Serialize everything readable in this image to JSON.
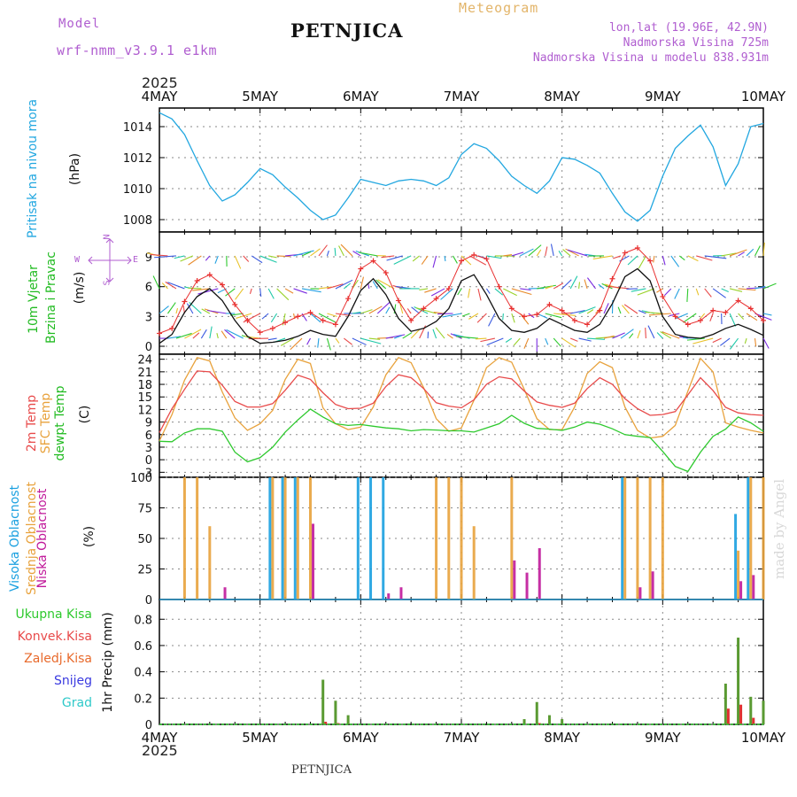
{
  "header": {
    "model_label": "Model",
    "model_name": "wrf-nmm_v3.9.1  e1km",
    "station": "PETNJICA",
    "product": "Meteogram",
    "location": "lon,lat (19.96E, 42.9N)",
    "elevation": "Nadmorska Visina 725m",
    "model_elevation": "Nadmorska Visina u modelu 838.931m",
    "year": "2025",
    "footer_station": "PETNJICA",
    "watermark": "made by Angel"
  },
  "colors": {
    "pressure": "#22a7e0",
    "temp2m": "#e84a4a",
    "sfc": "#e8a23c",
    "dewpt": "#2ec92e",
    "high_cloud": "#1aa0e0",
    "mid_cloud": "#e8a23c",
    "low_cloud": "#c0189a",
    "total_precip": "#5a9a32",
    "conv_precip": "#e03030",
    "wind_speed": "#111111",
    "gust": "#e83030"
  },
  "x_axis": {
    "ticks": [
      "4MAY",
      "5MAY",
      "6MAY",
      "7MAY",
      "8MAY",
      "9MAY",
      "10MAY"
    ],
    "range_hours": [
      0,
      144
    ]
  },
  "panels": {
    "pressure": {
      "ylabel_left": "Pritisak na nivou mora",
      "unit": "(hPa)",
      "yticks": [
        "1008",
        "1010",
        "1012",
        "1014"
      ]
    },
    "wind": {
      "ylabel_left_1": "10m Vjetar",
      "ylabel_left_2": "Brzina i Pravac",
      "unit": "(m/s)",
      "yticks": [
        "0",
        "3",
        "6",
        "9"
      ],
      "compass_n": "N",
      "compass_s": "S",
      "compass_e": "E",
      "compass_w": "W",
      "compass_row1": "N",
      "compass_row2": "^",
      "compass_row3": "W <-|-> E",
      "compass_row4": "v",
      "compass_row5": "S"
    },
    "temp": {
      "ylabel_1": "2m Temp",
      "ylabel_2": "SFC Temp",
      "ylabel_3": "dewpt Temp",
      "unit": "(C)",
      "yticks": [
        "-3",
        "0",
        "3",
        "6",
        "9",
        "12",
        "15",
        "18",
        "21",
        "24"
      ]
    },
    "cloud": {
      "ylabel_1": "Visoka Oblacnost",
      "ylabel_2": "Srednja Oblacnost",
      "ylabel_3": "Niska Oblacnost",
      "unit": "(%)",
      "yticks": [
        "0",
        "25",
        "50",
        "75",
        "100"
      ]
    },
    "precip": {
      "legend": [
        "Ukupna Kisa",
        "Konvek.Kisa",
        "Zaledj.Kisa",
        "Snijeg",
        "Grad"
      ],
      "ylabel": "1hr Precip (mm)",
      "yticks": [
        "0",
        "0.2",
        "0.4",
        "0.6",
        "0.8"
      ]
    }
  },
  "chart_data": [
    {
      "type": "line",
      "title": "Pritisak na nivou mora",
      "ylabel": "(hPa)",
      "ylim": [
        1007.2,
        1015.2
      ],
      "x": [
        0,
        3,
        6,
        9,
        12,
        15,
        18,
        21,
        24,
        27,
        30,
        33,
        36,
        39,
        42,
        45,
        48,
        51,
        54,
        57,
        60,
        63,
        66,
        69,
        72,
        75,
        78,
        81,
        84,
        87,
        90,
        93,
        96,
        99,
        102,
        105,
        108,
        111,
        114,
        117,
        120,
        123,
        126,
        129,
        132,
        135,
        138,
        141,
        144
      ],
      "series": [
        {
          "name": "",
          "values": [
            1014.9,
            1014.5,
            1013.5,
            1011.8,
            1010.2,
            1009.2,
            1009.6,
            1010.4,
            1011.3,
            1010.9,
            1010.1,
            1009.4,
            1008.6,
            1008.0,
            1008.3,
            1009.4,
            1010.6,
            1010.4,
            1010.2,
            1010.5,
            1010.6,
            1010.5,
            1010.2,
            1010.7,
            1012.2,
            1012.9,
            1012.6,
            1011.8,
            1010.8,
            1010.2,
            1009.7,
            1010.5,
            1012.0,
            1011.9,
            1011.5,
            1011.0,
            1009.7,
            1008.5,
            1007.9,
            1008.6,
            1010.8,
            1012.6,
            1013.4,
            1014.1,
            1012.7,
            1010.2,
            1011.6,
            1014.0,
            1014.2
          ]
        }
      ]
    },
    {
      "type": "line",
      "title": "10m Vjetar Brzina i Pravac",
      "ylabel": "(m/s)",
      "ylim": [
        -0.8,
        11.5
      ],
      "x": [
        0,
        3,
        6,
        9,
        12,
        15,
        18,
        21,
        24,
        27,
        30,
        33,
        36,
        39,
        42,
        45,
        48,
        51,
        54,
        57,
        60,
        63,
        66,
        69,
        72,
        75,
        78,
        81,
        84,
        87,
        90,
        93,
        96,
        99,
        102,
        105,
        108,
        111,
        114,
        117,
        120,
        123,
        126,
        129,
        132,
        135,
        138,
        141,
        144
      ],
      "series": [
        {
          "name": "",
          "values": [
            0.3,
            1.2,
            3.4,
            5.0,
            5.8,
            4.6,
            2.6,
            1.0,
            0.3,
            0.4,
            0.6,
            1.0,
            1.6,
            1.2,
            1.0,
            3.0,
            5.6,
            6.8,
            5.2,
            2.8,
            1.5,
            1.8,
            2.5,
            3.8,
            6.6,
            7.2,
            5.2,
            2.8,
            1.6,
            1.4,
            1.8,
            2.8,
            2.2,
            1.6,
            1.4,
            2.2,
            4.3,
            7.0,
            7.8,
            6.6,
            3.0,
            1.2,
            0.9,
            0.8,
            1.2,
            1.8,
            2.2,
            1.7,
            1.1
          ]
        },
        {
          "name": "",
          "values": [
            1.3,
            1.8,
            4.5,
            6.6,
            7.2,
            6.2,
            4.2,
            2.6,
            1.4,
            1.8,
            2.4,
            3.0,
            3.4,
            2.6,
            2.2,
            4.8,
            7.8,
            8.6,
            7.4,
            4.6,
            2.6,
            3.8,
            4.8,
            5.8,
            8.6,
            9.2,
            8.8,
            6.0,
            3.8,
            3.0,
            3.2,
            4.2,
            3.6,
            2.6,
            2.2,
            3.6,
            6.8,
            9.4,
            9.9,
            8.6,
            5.0,
            3.0,
            2.2,
            2.6,
            3.6,
            3.4,
            4.6,
            3.8,
            2.6
          ]
        }
      ]
    },
    {
      "type": "line",
      "title": "2m Temp / SFC Temp / dewpt Temp",
      "ylabel": "(C)",
      "ylim": [
        -4.2,
        25.2
      ],
      "x": [
        0,
        3,
        6,
        9,
        12,
        15,
        18,
        21,
        24,
        27,
        30,
        33,
        36,
        39,
        42,
        45,
        48,
        51,
        54,
        57,
        60,
        63,
        66,
        69,
        72,
        75,
        78,
        81,
        84,
        87,
        90,
        93,
        96,
        99,
        102,
        105,
        108,
        111,
        114,
        117,
        120,
        123,
        126,
        129,
        132,
        135,
        138,
        141,
        144
      ],
      "series": [
        {
          "name": "",
          "values": [
            6.5,
            12.2,
            16.8,
            21.2,
            21.0,
            17.8,
            13.9,
            12.6,
            12.6,
            13.4,
            16.6,
            20.2,
            19.2,
            16.0,
            13.2,
            12.2,
            12.3,
            13.5,
            17.5,
            20.3,
            19.6,
            17.0,
            13.6,
            12.8,
            12.4,
            14.3,
            18.0,
            19.8,
            19.3,
            16.4,
            13.8,
            13.0,
            12.5,
            13.5,
            17.0,
            19.6,
            18.0,
            14.6,
            12.2,
            10.6,
            10.8,
            11.5,
            15.5,
            19.6,
            16.5,
            12.5,
            11.2,
            10.8,
            10.6
          ]
        },
        {
          "name": "",
          "values": [
            4.5,
            10.8,
            19.0,
            24.4,
            23.6,
            16.2,
            10.0,
            7.0,
            8.6,
            11.8,
            19.2,
            24.0,
            23.0,
            12.4,
            8.6,
            7.2,
            7.8,
            12.6,
            20.3,
            24.4,
            23.2,
            17.2,
            9.8,
            6.8,
            7.6,
            14.2,
            22.0,
            24.4,
            23.3,
            16.8,
            9.8,
            7.2,
            7.2,
            12.6,
            20.6,
            23.4,
            22.0,
            12.6,
            7.0,
            5.2,
            5.6,
            8.2,
            16.4,
            24.2,
            21.0,
            8.8,
            7.8,
            7.0,
            6.4
          ]
        },
        {
          "name": "",
          "values": [
            4.4,
            4.3,
            6.4,
            7.4,
            7.4,
            6.8,
            1.8,
            -0.5,
            0.5,
            3.0,
            6.6,
            9.5,
            12.1,
            10.2,
            8.6,
            8.2,
            8.4,
            8.0,
            7.6,
            7.4,
            6.9,
            7.2,
            7.1,
            6.9,
            6.9,
            6.6,
            7.6,
            8.6,
            10.6,
            8.7,
            7.5,
            7.3,
            7.0,
            7.8,
            9.0,
            8.5,
            7.4,
            6.0,
            5.6,
            5.3,
            2.0,
            -1.6,
            -2.8,
            1.8,
            5.6,
            7.3,
            10.2,
            8.8,
            6.8
          ]
        }
      ]
    },
    {
      "type": "bar",
      "title": "Oblacnost",
      "ylabel": "(%)",
      "ylim": [
        0,
        100
      ],
      "x": [
        0,
        3,
        6,
        9,
        12,
        15,
        18,
        21,
        24,
        27,
        30,
        33,
        36,
        39,
        42,
        45,
        48,
        51,
        54,
        57,
        60,
        63,
        66,
        69,
        72,
        75,
        78,
        81,
        84,
        87,
        90,
        93,
        96,
        99,
        102,
        105,
        108,
        111,
        114,
        117,
        120,
        123,
        126,
        129,
        132,
        135,
        138,
        141,
        144
      ],
      "series": [
        {
          "name": "Visoka Oblacnost",
          "values": [
            0,
            0,
            0,
            0,
            0,
            0,
            0,
            0,
            0,
            100,
            100,
            100,
            0,
            0,
            0,
            0,
            100,
            100,
            100,
            0,
            0,
            0,
            0,
            0,
            0,
            0,
            0,
            0,
            0,
            0,
            0,
            0,
            0,
            0,
            0,
            0,
            0,
            100,
            0,
            0,
            0,
            0,
            0,
            0,
            0,
            0,
            70,
            100,
            0
          ]
        },
        {
          "name": "Srednja Oblacnost",
          "values": [
            0,
            0,
            100,
            100,
            60,
            0,
            0,
            0,
            0,
            100,
            100,
            100,
            100,
            0,
            0,
            0,
            0,
            0,
            0,
            0,
            0,
            0,
            100,
            100,
            100,
            60,
            0,
            0,
            100,
            0,
            0,
            0,
            0,
            0,
            0,
            0,
            0,
            100,
            100,
            100,
            100,
            0,
            0,
            0,
            0,
            0,
            40,
            100,
            100
          ]
        },
        {
          "name": "Niska Oblacnost",
          "values": [
            0,
            0,
            0,
            0,
            0,
            10,
            0,
            0,
            0,
            0,
            0,
            0,
            62,
            0,
            0,
            0,
            0,
            0,
            5,
            10,
            0,
            0,
            0,
            0,
            0,
            0,
            0,
            0,
            32,
            22,
            42,
            0,
            0,
            0,
            0,
            0,
            0,
            0,
            10,
            23,
            0,
            0,
            0,
            0,
            0,
            0,
            15,
            20,
            0
          ]
        }
      ]
    },
    {
      "type": "bar",
      "title": "1hr Precip",
      "ylabel": "1hr Precip (mm)",
      "ylim": [
        0,
        0.95
      ],
      "x": [
        0,
        3,
        6,
        9,
        12,
        15,
        18,
        21,
        24,
        27,
        30,
        33,
        36,
        39,
        42,
        45,
        48,
        51,
        54,
        57,
        60,
        63,
        66,
        69,
        72,
        75,
        78,
        81,
        84,
        87,
        90,
        93,
        96,
        99,
        102,
        105,
        108,
        111,
        114,
        117,
        120,
        123,
        126,
        129,
        132,
        135,
        138,
        141,
        144
      ],
      "series": [
        {
          "name": "Ukupna Kisa",
          "values": [
            0,
            0,
            0,
            0,
            0,
            0,
            0,
            0,
            0,
            0,
            0,
            0,
            0,
            0.34,
            0.18,
            0.07,
            0,
            0,
            0,
            0,
            0,
            0,
            0,
            0,
            0,
            0,
            0,
            0,
            0,
            0.04,
            0.17,
            0.07,
            0.04,
            0,
            0,
            0,
            0,
            0,
            0,
            0,
            0,
            0,
            0,
            0,
            0,
            0.31,
            0.66,
            0.21,
            0.18
          ]
        },
        {
          "name": "Konvek.Kisa",
          "values": [
            0,
            0,
            0,
            0,
            0,
            0,
            0,
            0,
            0,
            0,
            0,
            0,
            0,
            0.02,
            0.01,
            0,
            0,
            0,
            0,
            0,
            0,
            0,
            0,
            0,
            0,
            0,
            0,
            0,
            0,
            0,
            0.01,
            0,
            0,
            0,
            0,
            0,
            0,
            0,
            0,
            0,
            0,
            0,
            0,
            0,
            0,
            0.12,
            0.15,
            0.05,
            0
          ]
        }
      ]
    }
  ]
}
